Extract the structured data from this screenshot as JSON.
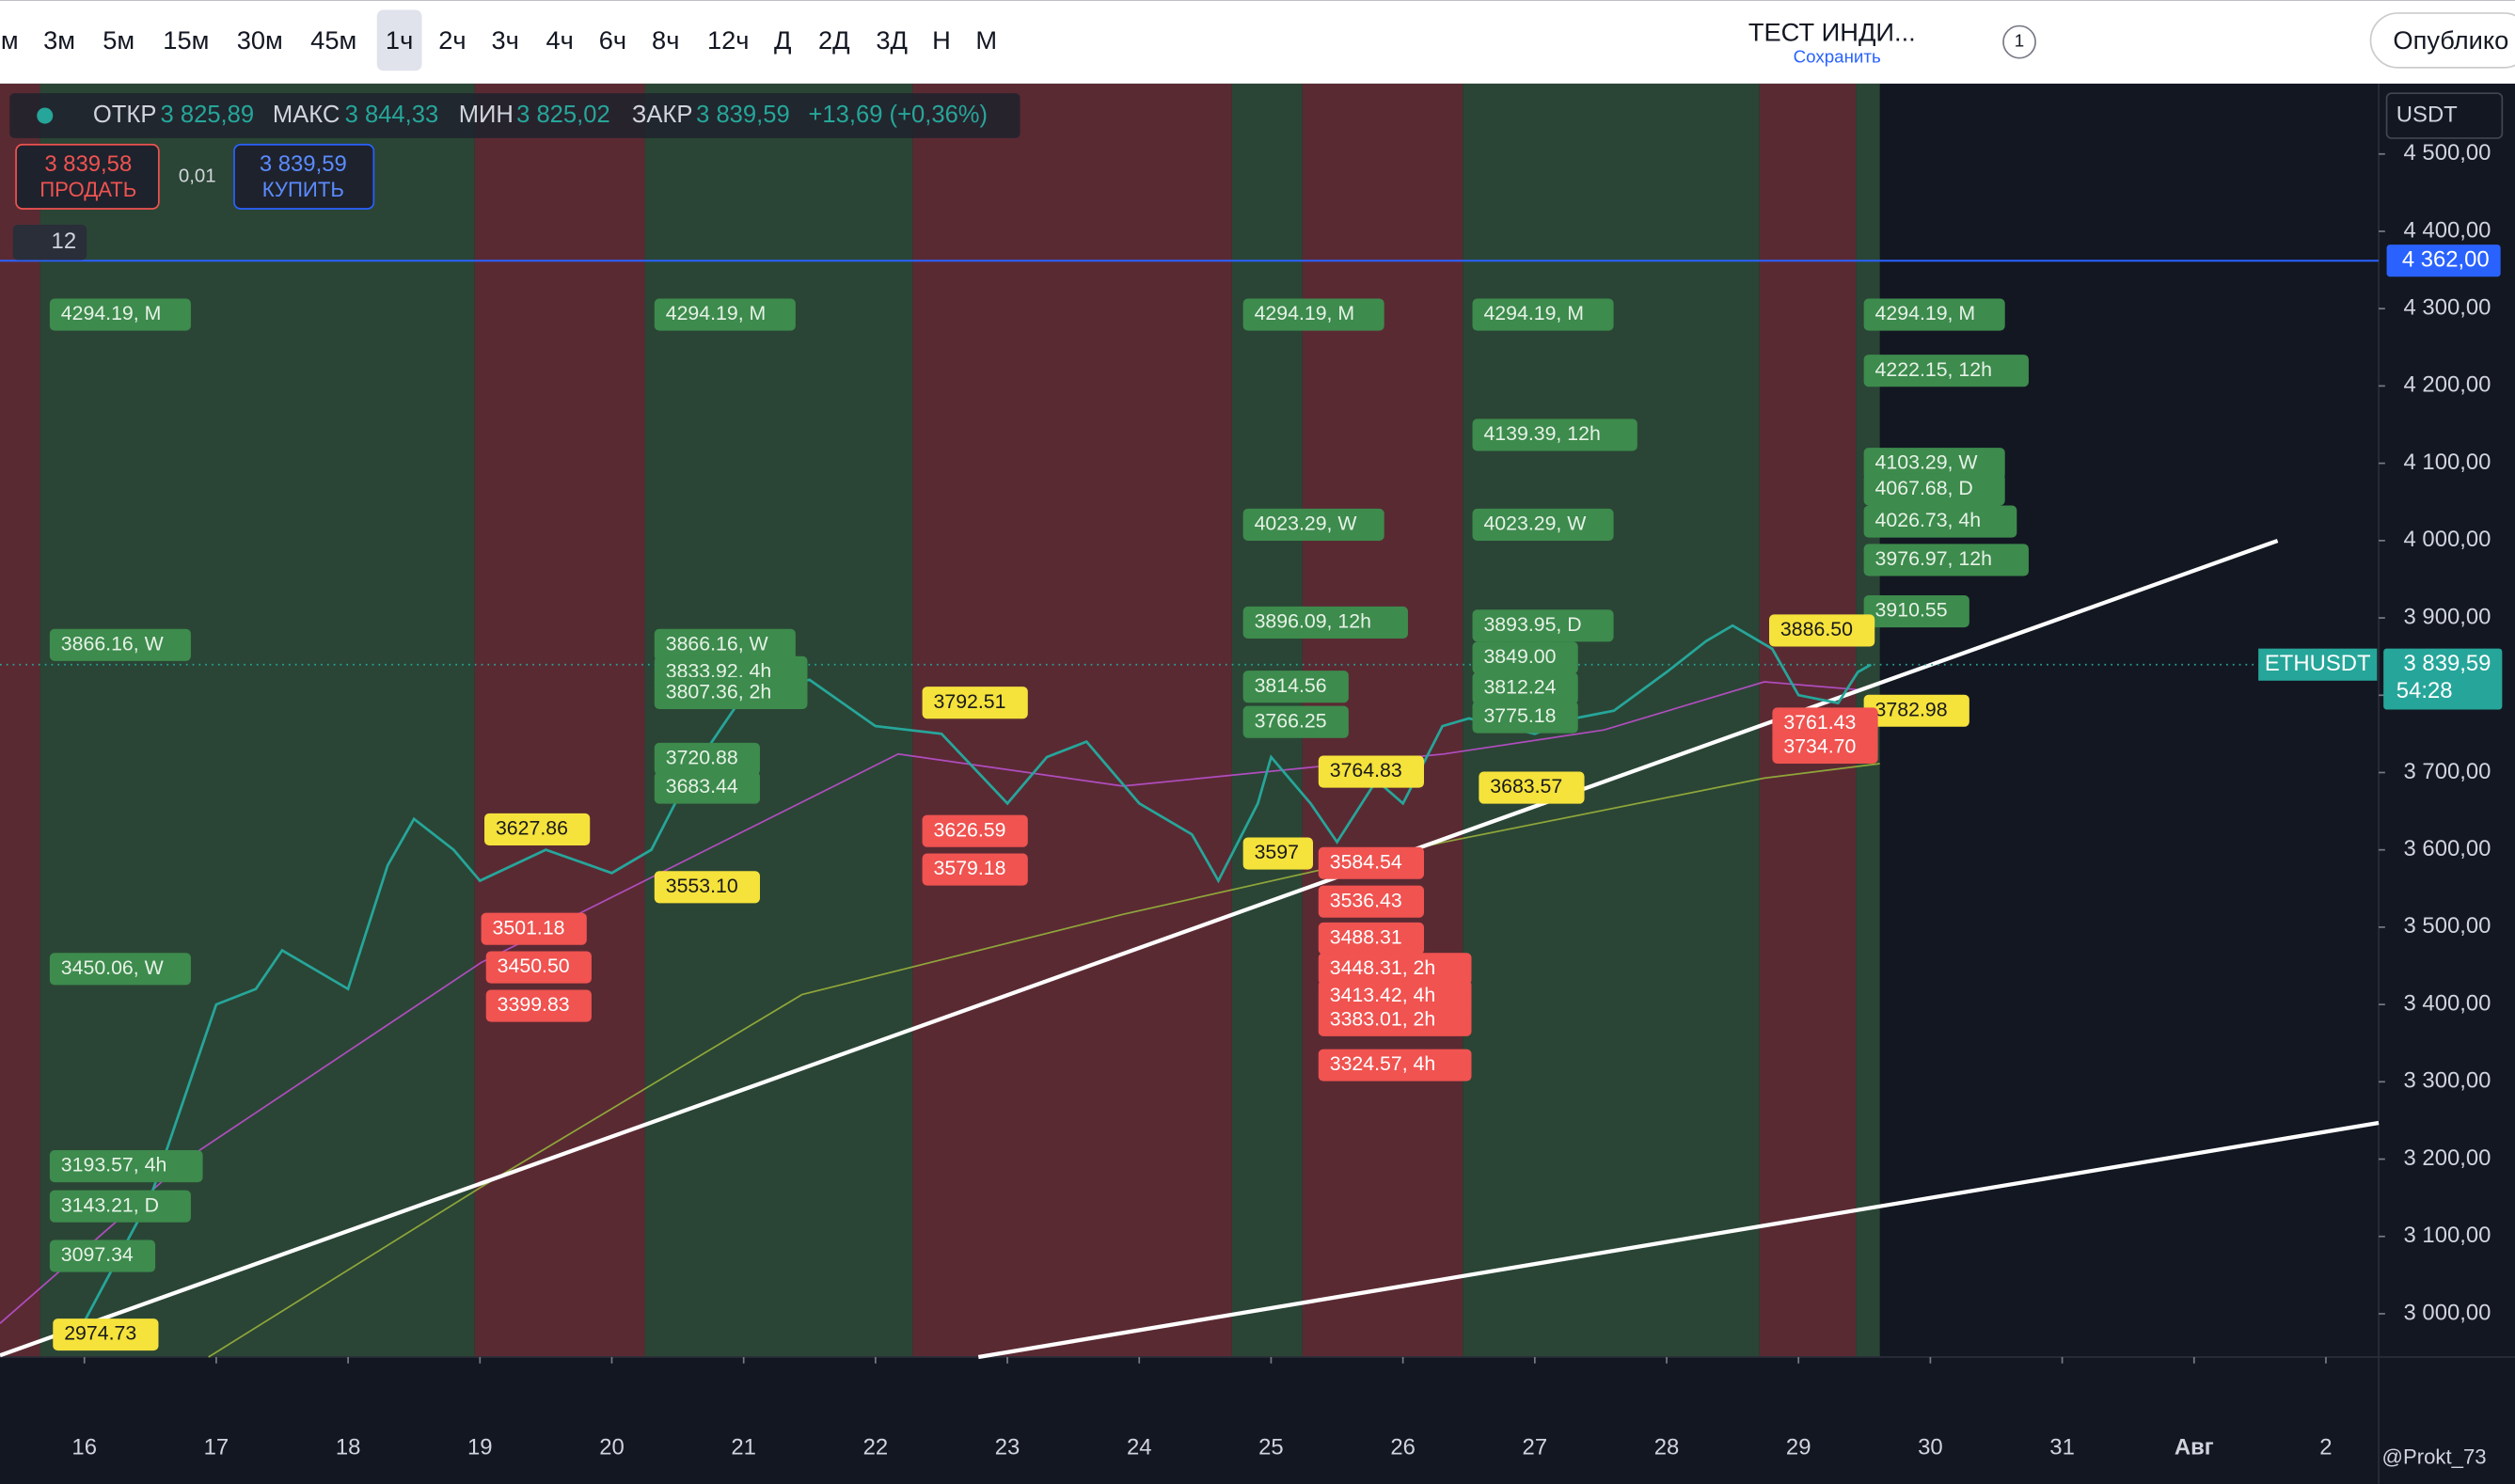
{
  "toolbar": {
    "intervals": [
      "м",
      "3м",
      "5м",
      "15м",
      "30м",
      "45м",
      "1ч",
      "2ч",
      "3ч",
      "4ч",
      "6ч",
      "8ч",
      "12ч",
      "Д",
      "2Д",
      "3Д",
      "Н",
      "М"
    ],
    "active": "1ч",
    "layout_name": "ТЕСТ ИНДИ...",
    "save": "Сохранить",
    "alerts": "1",
    "publish": "Опублико"
  },
  "legend": {
    "open_label": "ОТКР",
    "open": "3 825,89",
    "high_label": "МАКС",
    "high": "3 844,33",
    "low_label": "МИН",
    "low": "3 825,02",
    "close_label": "ЗАКР",
    "close": "3 839,59",
    "change": "+13,69 (+0,36%)",
    "indicators": "12"
  },
  "trade": {
    "sell_price": "3 839,58",
    "sell": "ПРОДАТЬ",
    "spread": "0,01",
    "buy_price": "3 839,59",
    "buy": "КУПИТЬ"
  },
  "currency": "USDT",
  "watermark": "@Prokt_73",
  "chart_data": {
    "type": "line",
    "color": "#26a69a",
    "x": [
      16,
      16.5,
      17,
      17.3,
      17.5,
      18,
      18.3,
      18.5,
      18.8,
      19,
      19.5,
      20,
      20.3,
      20.6,
      21,
      21.5,
      22,
      22.5,
      23,
      23.3,
      23.6,
      24,
      24.4,
      24.6,
      24.9,
      25,
      25.3,
      25.5,
      25.8,
      26,
      26.3,
      26.5,
      27,
      27.3,
      27.6,
      28,
      28.3,
      28.5,
      28.8,
      29,
      29.3,
      29.45,
      29.55
    ],
    "values": [
      2990,
      3150,
      3400,
      3420,
      3470,
      3420,
      3580,
      3640,
      3600,
      3560,
      3600,
      3570,
      3600,
      3700,
      3800,
      3820,
      3760,
      3750,
      3660,
      3720,
      3740,
      3660,
      3620,
      3560,
      3660,
      3720,
      3660,
      3610,
      3690,
      3660,
      3760,
      3770,
      3750,
      3770,
      3780,
      3830,
      3870,
      3890,
      3860,
      3800,
      3790,
      3830,
      3839.59
    ],
    "xlim": [
      15.36,
      33.4
    ],
    "ylim": [
      2944,
      4591
    ],
    "xticks": [
      16,
      17,
      18,
      19,
      20,
      21,
      22,
      23,
      24,
      25,
      26,
      27,
      28,
      29,
      30,
      31,
      {
        "value": 32,
        "label": "Авг"
      },
      {
        "value": 33,
        "label": "2"
      }
    ],
    "yticks": [
      {
        "value": 4500,
        "label": "4 500,00"
      },
      {
        "value": 4400,
        "label": "4 400,00"
      },
      {
        "value": 4300,
        "label": "4 300,00"
      },
      {
        "value": 4200,
        "label": "4 200,00"
      },
      {
        "value": 4100,
        "label": "4 100,00"
      },
      {
        "value": 4000,
        "label": "4 000,00"
      },
      {
        "value": 3900,
        "label": "3 900,00"
      },
      {
        "value": 3800,
        "label": "3 800,00"
      },
      {
        "value": 3700,
        "label": "3 700,00"
      },
      {
        "value": 3600,
        "label": "3 600,00"
      },
      {
        "value": 3500,
        "label": "3 500,00"
      },
      {
        "value": 3400,
        "label": "3 400,00"
      },
      {
        "value": 3300,
        "label": "3 300,00"
      },
      {
        "value": 3200,
        "label": "3 200,00"
      },
      {
        "value": 3100,
        "label": "3 100,00"
      },
      {
        "value": 3000,
        "label": "3 000,00"
      }
    ],
    "alert_line": {
      "value": 4362,
      "label": "4 362,00"
    },
    "last": {
      "symbol": "ETHUSDT",
      "value": 3839.59,
      "label": "3 839,59",
      "countdown": "54:28"
    },
    "levels": [
      {
        "text": "4294.19, M",
        "style": "green"
      },
      {
        "text": "4294.19, M",
        "style": "green"
      },
      {
        "text": "4294.19, M",
        "style": "green"
      },
      {
        "text": "4294.19, M",
        "style": "green"
      },
      {
        "text": "4294.19, M",
        "style": "green"
      },
      {
        "text": "4222.15, 12h",
        "style": "green"
      },
      {
        "text": "4139.39, 12h",
        "style": "green"
      },
      {
        "text": "4103.29, W",
        "style": "green"
      },
      {
        "text": "4067.68, D",
        "style": "green"
      },
      {
        "text": "4026.73, 4h",
        "style": "green"
      },
      {
        "text": "4023.29, W",
        "style": "green"
      },
      {
        "text": "4023.29, W",
        "style": "green"
      },
      {
        "text": "3976.97, 12h",
        "style": "green"
      },
      {
        "text": "3910.55",
        "style": "green"
      },
      {
        "text": "3896.09, 12h",
        "style": "green"
      },
      {
        "text": "3893.95, D",
        "style": "green"
      },
      {
        "text": "3849.00",
        "style": "green"
      },
      {
        "text": "3812.24",
        "style": "green"
      },
      {
        "text": "3775.18",
        "style": "green"
      },
      {
        "text": "3866.16, W",
        "style": "green"
      },
      {
        "text": "3866.16, W",
        "style": "green"
      },
      {
        "text": "3833.92, 4h",
        "style": "green"
      },
      {
        "text": "3807.36, 2h",
        "style": "green"
      },
      {
        "text": "3720.88",
        "style": "green"
      },
      {
        "text": "3683.44",
        "style": "green"
      },
      {
        "text": "3814.56",
        "style": "green"
      },
      {
        "text": "3766.25",
        "style": "green"
      },
      {
        "text": "3450.06, W",
        "style": "green"
      },
      {
        "text": "3193.57, 4h",
        "style": "green"
      },
      {
        "text": "3143.21, D",
        "style": "green"
      },
      {
        "text": "3097.34",
        "style": "green"
      },
      {
        "text": "3627.86",
        "style": "yellow"
      },
      {
        "text": "3553.10",
        "style": "yellow"
      },
      {
        "text": "3792.51",
        "style": "yellow"
      },
      {
        "text": "3764.83",
        "style": "yellow"
      },
      {
        "text": "3683.57",
        "style": "yellow"
      },
      {
        "text": "3597",
        "style": "yellow"
      },
      {
        "text": "3886.50",
        "style": "yellow"
      },
      {
        "text": "3782.98",
        "style": "yellow"
      },
      {
        "text": "2974.73",
        "style": "yellow"
      },
      {
        "text": "3501.18",
        "style": "red"
      },
      {
        "text": "3450.50",
        "style": "red"
      },
      {
        "text": "3399.83",
        "style": "red"
      },
      {
        "text": "3626.59",
        "style": "red"
      },
      {
        "text": "3579.18",
        "style": "red"
      },
      {
        "text": "3584.54",
        "style": "red"
      },
      {
        "text": "3536.43",
        "style": "red"
      },
      {
        "text": "3488.31",
        "style": "red"
      },
      {
        "text": "3448.31, 2h",
        "style": "red"
      },
      {
        "text": "3413.42, 4h",
        "style": "red"
      },
      {
        "text": "3383.01, 2h",
        "style": "red"
      },
      {
        "text": "3324.57, 4h",
        "style": "red"
      },
      {
        "text": "3761.43",
        "style": "red"
      },
      {
        "text": "3734.70",
        "style": "red"
      }
    ]
  }
}
